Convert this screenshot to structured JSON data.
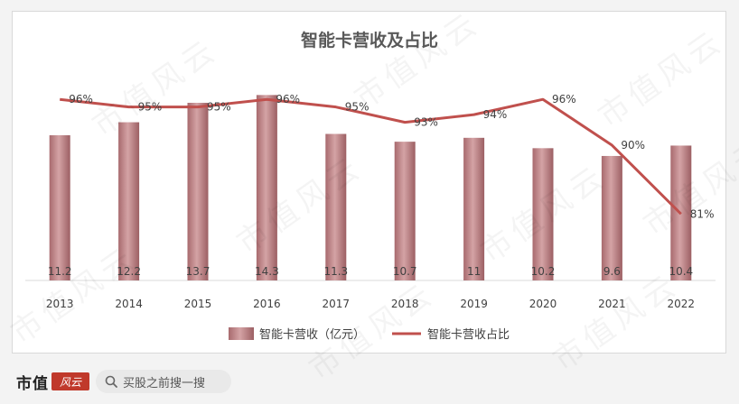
{
  "chart_data": {
    "type": "bar",
    "title": "智能卡营收及占比",
    "categories": [
      "2013",
      "2014",
      "2015",
      "2016",
      "2017",
      "2018",
      "2019",
      "2020",
      "2021",
      "2022"
    ],
    "series": [
      {
        "name": "智能卡营收（亿元）",
        "type": "bar",
        "values": [
          11.2,
          12.2,
          13.7,
          14.3,
          11.3,
          10.7,
          11,
          10.2,
          9.6,
          10.4
        ],
        "color": "#b7777a"
      },
      {
        "name": "智能卡营收占比",
        "type": "line",
        "values": [
          96,
          95,
          95,
          96,
          95,
          93,
          94,
          96,
          90,
          81
        ],
        "labels": [
          "96%",
          "95%",
          "95%",
          "96%",
          "95%",
          "93%",
          "94%",
          "96%",
          "90%",
          "81%"
        ],
        "color": "#c0504d"
      }
    ],
    "legend": "bottom"
  },
  "footer": {
    "brand": "市值",
    "brand_badge": "风云",
    "search_placeholder": "买股之前搜一搜"
  },
  "watermark": "市值风云"
}
